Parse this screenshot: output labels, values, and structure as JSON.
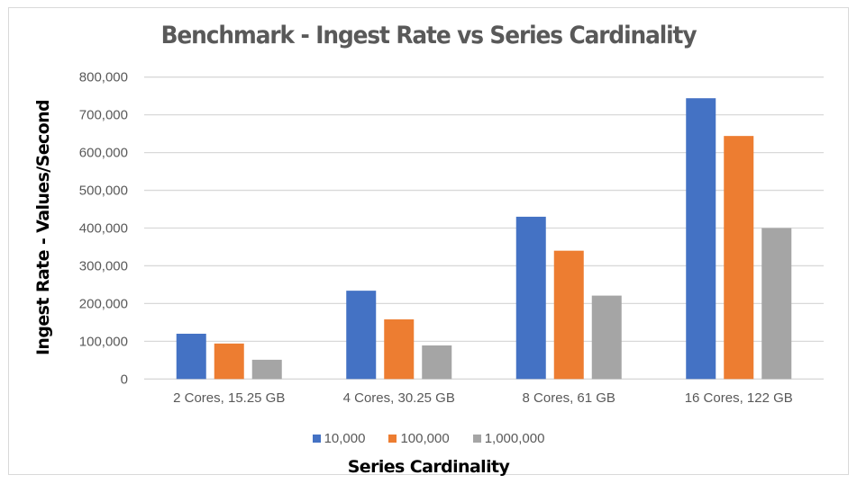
{
  "chart_data": {
    "type": "bar",
    "title": "Benchmark - Ingest Rate vs Series Cardinality",
    "xlabel": "Series Cardinality",
    "ylabel": "Ingest Rate - Values/Second",
    "categories": [
      "2 Cores, 15.25 GB",
      "4 Cores, 30.25 GB",
      "8 Cores, 61 GB",
      "16 Cores, 122 GB"
    ],
    "series": [
      {
        "name": "10,000",
        "color": "#4472c4",
        "values": [
          120000,
          234000,
          430000,
          744000
        ]
      },
      {
        "name": "100,000",
        "color": "#ed7d31",
        "values": [
          94000,
          158000,
          340000,
          644000
        ]
      },
      {
        "name": "1,000,000",
        "color": "#a5a5a5",
        "values": [
          51000,
          89000,
          221000,
          400000
        ]
      }
    ],
    "ylim": [
      0,
      800000
    ],
    "yticks": [
      0,
      100000,
      200000,
      300000,
      400000,
      500000,
      600000,
      700000,
      800000
    ],
    "ytick_labels": [
      "0",
      "100,000",
      "200,000",
      "300,000",
      "400,000",
      "500,000",
      "600,000",
      "700,000",
      "800,000"
    ],
    "grid": true,
    "legend_position": "bottom"
  }
}
